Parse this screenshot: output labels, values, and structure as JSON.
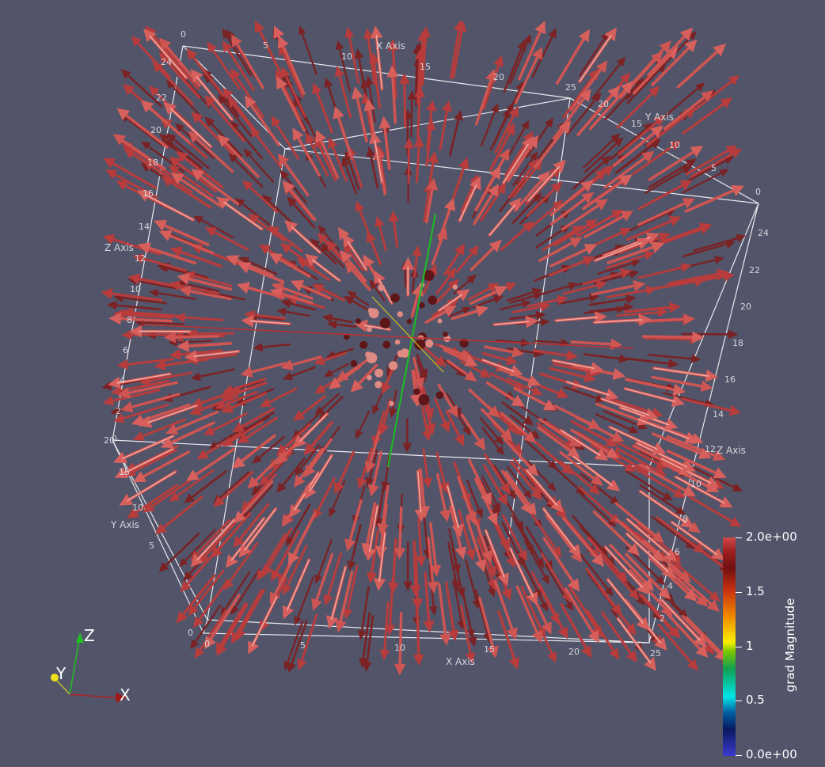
{
  "view": {
    "background": "#525469",
    "glyph_color": "#c84a48",
    "glyph_highlight": "#f2b0a8",
    "glyph_shadow": "#7a1e20"
  },
  "axes": {
    "x_title": "X Axis",
    "y_title": "Y Axis",
    "z_title": "Z Axis",
    "x_ticks_top": [
      "0",
      "5",
      "10",
      "15",
      "20",
      "25"
    ],
    "x_ticks_bottom": [
      "0",
      "5",
      "10",
      "15",
      "20",
      "25"
    ],
    "y_ticks_top": [
      "20",
      "15",
      "10",
      "5",
      "0"
    ],
    "y_ticks_left": [
      "20",
      "15",
      "10",
      "5",
      "0"
    ],
    "z_ticks_left": [
      "0",
      "2",
      "4",
      "6",
      "8",
      "10",
      "12",
      "14",
      "16",
      "18",
      "20",
      "22",
      "24"
    ],
    "z_ticks_right": [
      "2",
      "4",
      "6",
      "8",
      "10",
      "12",
      "14",
      "16",
      "18",
      "20",
      "22",
      "24"
    ]
  },
  "orientation": {
    "x": "X",
    "y": "Y",
    "z": "Z"
  },
  "colorbar": {
    "title": "grad Magnitude",
    "labels": [
      "2.0e+00",
      "1.5",
      "1",
      "0.5",
      "0.0e+00"
    ],
    "range": [
      0,
      2
    ]
  }
}
